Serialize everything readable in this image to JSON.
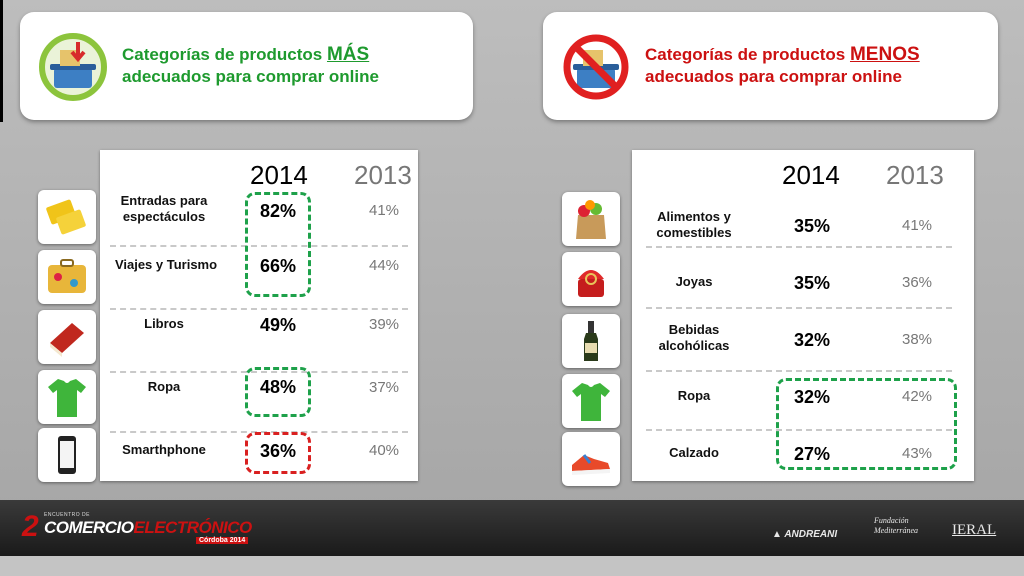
{
  "left_header": {
    "title_pre": "Categorías de productos ",
    "title_highlight": "MÁS",
    "title_post": "adecuados para comprar online"
  },
  "right_header": {
    "title_pre": "Categorías de productos ",
    "title_highlight": "MENOS",
    "title_post": "adecuados para comprar online"
  },
  "left_table": {
    "year_current": "2014",
    "year_previous": "2013",
    "rows": [
      {
        "category": "Entradas para espectáculos",
        "v2014": "82%",
        "v2013": "41%",
        "icon": "tickets-icon"
      },
      {
        "category": "Viajes y Turismo",
        "v2014": "66%",
        "v2013": "44%",
        "icon": "suitcase-icon"
      },
      {
        "category": "Libros",
        "v2014": "49%",
        "v2013": "39%",
        "icon": "book-icon"
      },
      {
        "category": "Ropa",
        "v2014": "48%",
        "v2013": "37%",
        "icon": "tshirt-icon"
      },
      {
        "category": "Smarthphone",
        "v2014": "36%",
        "v2013": "40%",
        "icon": "smartphone-icon"
      }
    ]
  },
  "right_table": {
    "year_current": "2014",
    "year_previous": "2013",
    "rows": [
      {
        "category": "Alimentos y comestibles",
        "v2014": "35%",
        "v2013": "41%",
        "icon": "grocery-bag-icon"
      },
      {
        "category": "Joyas",
        "v2014": "35%",
        "v2013": "36%",
        "icon": "ring-box-icon"
      },
      {
        "category": "Bebidas alcohólicas",
        "v2014": "32%",
        "v2013": "38%",
        "icon": "wine-bottle-icon"
      },
      {
        "category": "Ropa",
        "v2014": "32%",
        "v2013": "42%",
        "icon": "tshirt-icon"
      },
      {
        "category": "Calzado",
        "v2014": "27%",
        "v2013": "43%",
        "icon": "sneaker-icon"
      }
    ]
  },
  "footer": {
    "logo_number": "2",
    "logo_superscript": "ENCUENTRO DE",
    "logo_word1": "COMERCIO",
    "logo_word2": "ELECTRÓNICO",
    "logo_city": "Córdoba 2014",
    "sponsor1": "ANDREANI",
    "sponsor2": "Fundación Mediterránea",
    "sponsor3": "IERAL"
  },
  "colors": {
    "more_green": "#1e9a2e",
    "less_red": "#cc1111",
    "highlight_green": "#1ea14a",
    "highlight_red": "#d92020"
  }
}
